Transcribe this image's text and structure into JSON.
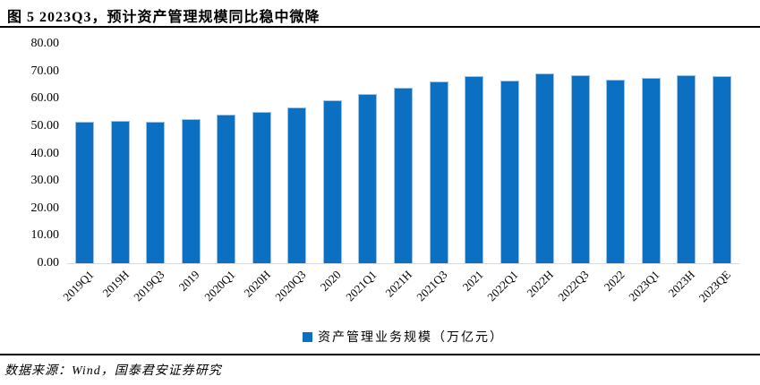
{
  "figure": {
    "title": "图 5 2023Q3，预计资产管理规模同比稳中微降",
    "source_note": "数据来源：Wind，国泰君安证券研究"
  },
  "legend": {
    "label": "资产管理业务规模（万亿元）"
  },
  "chart_data": {
    "type": "bar",
    "title": "图 5 2023Q3，预计资产管理规模同比稳中微降",
    "categories": [
      "2019Q1",
      "2019H",
      "2019Q3",
      "2019",
      "2020Q1",
      "2020H",
      "2020Q3",
      "2020",
      "2021Q1",
      "2021H",
      "2021Q3",
      "2021",
      "2022Q1",
      "2022H",
      "2022Q3",
      "2022",
      "2023Q1",
      "2023H",
      "2023QE"
    ],
    "values": [
      51.2,
      51.7,
      51.2,
      52.3,
      53.9,
      54.8,
      56.4,
      59.0,
      61.3,
      63.8,
      66.0,
      67.9,
      66.2,
      69.0,
      68.4,
      66.6,
      67.2,
      68.4,
      68.0
    ],
    "series": [
      {
        "name": "资产管理业务规模（万亿元）",
        "values": [
          51.2,
          51.7,
          51.2,
          52.3,
          53.9,
          54.8,
          56.4,
          59.0,
          61.3,
          63.8,
          66.0,
          67.9,
          66.2,
          69.0,
          68.4,
          66.6,
          67.2,
          68.4,
          68.0
        ]
      }
    ],
    "xlabel": "",
    "ylabel": "",
    "ylim": [
      0,
      80
    ],
    "ytick_labels": [
      "0.00",
      "10.00",
      "20.00",
      "30.00",
      "40.00",
      "50.00",
      "60.00",
      "70.00",
      "80.00"
    ],
    "ytick_values": [
      0,
      10,
      20,
      30,
      40,
      50,
      60,
      70,
      80
    ],
    "grid": false,
    "legend_position": "bottom",
    "bar_color": "#0b70c2",
    "bar_edge_color": "#9cc2e5",
    "axis_line_color": "#d9d9d9"
  }
}
